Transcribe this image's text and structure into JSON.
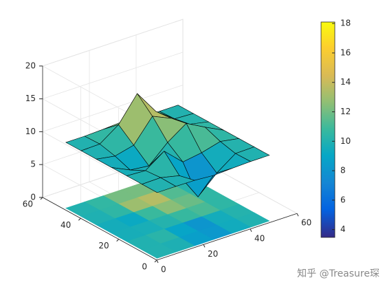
{
  "chart_data": {
    "type": "surfc",
    "x": [
      1,
      9,
      17,
      25,
      33,
      41,
      49
    ],
    "y": [
      1,
      9,
      17,
      25,
      33,
      41,
      49
    ],
    "z": [
      [
        10,
        10,
        9.97,
        9.75,
        9.89,
        10,
        10
      ],
      [
        10,
        10.05,
        9.41,
        5.24,
        7.91,
        9.94,
        10
      ],
      [
        10,
        9.86,
        11.86,
        9.27,
        9.73,
        10.5,
        10
      ],
      [
        10,
        8.67,
        8.35,
        10.98,
        12.93,
        11.41,
        10
      ],
      [
        10,
        9.52,
        10.23,
        13.69,
        12.43,
        10.58,
        10
      ],
      [
        10,
        10.08,
        12.08,
        15.86,
        12.2,
        10.13,
        10
      ],
      [
        10,
        10,
        10.11,
        10.3,
        10.11,
        10,
        10
      ]
    ],
    "xlim": [
      0,
      60
    ],
    "xticks": [
      0,
      20,
      40,
      60
    ],
    "ylim": [
      0,
      60
    ],
    "yticks": [
      0,
      20,
      40,
      60
    ],
    "zlim": [
      0,
      20
    ],
    "zticks": [
      0,
      5,
      10,
      15,
      20
    ],
    "clim": [
      3.47,
      18.1
    ],
    "cticks": [
      4,
      6,
      8,
      10,
      12,
      14,
      16,
      18
    ],
    "colormap": "parula",
    "grid": true,
    "colorbar": true,
    "watermark": "知乎 @Treasure琛"
  }
}
